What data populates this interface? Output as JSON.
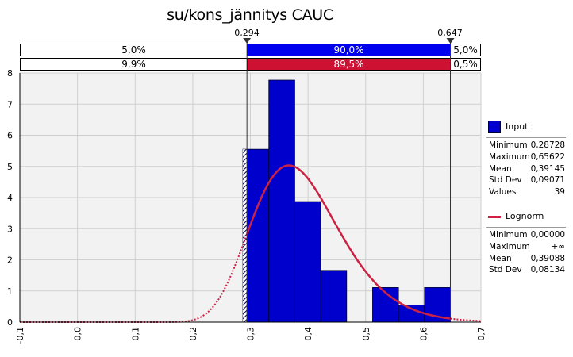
{
  "chart_data": {
    "type": "bar",
    "title": "su/kons_jännitys CAUC",
    "xlabel": "",
    "ylabel": "",
    "xlim": [
      -0.1,
      0.7
    ],
    "ylim": [
      0,
      8
    ],
    "x_ticks": [
      "-0,1",
      "0,0",
      "0,1",
      "0,2",
      "0,3",
      "0,4",
      "0,5",
      "0,6",
      "0,7"
    ],
    "y_ticks": [
      "0",
      "1",
      "2",
      "3",
      "4",
      "5",
      "6",
      "7",
      "8"
    ],
    "grid": true,
    "legend_position": "right",
    "markers": [
      {
        "x": 0.294,
        "label": "0,294"
      },
      {
        "x": 0.647,
        "label": "0,647"
      }
    ],
    "bars": [
      {
        "x0": 0.287,
        "x1": 0.332,
        "value": 5.55
      },
      {
        "x0": 0.332,
        "x1": 0.377,
        "value": 7.77
      },
      {
        "x0": 0.377,
        "x1": 0.422,
        "value": 3.87
      },
      {
        "x0": 0.422,
        "x1": 0.467,
        "value": 1.66
      },
      {
        "x0": 0.467,
        "x1": 0.512,
        "value": 0
      },
      {
        "x0": 0.512,
        "x1": 0.557,
        "value": 1.11
      },
      {
        "x0": 0.557,
        "x1": 0.602,
        "value": 0.55
      },
      {
        "x0": 0.602,
        "x1": 0.647,
        "value": 1.11
      }
    ],
    "series": [
      {
        "name": "Input",
        "type": "histogram",
        "color": "#0000cc"
      },
      {
        "name": "Lognorm",
        "type": "curve",
        "color": "#cc2244",
        "mu": 0.39088,
        "sd": 0.08134
      }
    ],
    "delimiters": {
      "input": [
        "5,0%",
        "90,0%",
        "5,0%"
      ],
      "fit": [
        "9,9%",
        "89,5%",
        "0,5%"
      ]
    }
  },
  "legend": {
    "input": {
      "name": "Input",
      "stats": [
        {
          "label": "Minimum",
          "value": "0,28728"
        },
        {
          "label": "Maximum",
          "value": "0,65622"
        },
        {
          "label": "Mean",
          "value": "0,39145"
        },
        {
          "label": "Std Dev",
          "value": "0,09071"
        },
        {
          "label": "Values",
          "value": "39"
        }
      ]
    },
    "fit": {
      "name": "Lognorm",
      "stats": [
        {
          "label": "Minimum",
          "value": "0,00000"
        },
        {
          "label": "Maximum",
          "value": "+∞"
        },
        {
          "label": "Mean",
          "value": "0,39088"
        },
        {
          "label": "Std Dev",
          "value": "0,08134"
        }
      ]
    }
  }
}
